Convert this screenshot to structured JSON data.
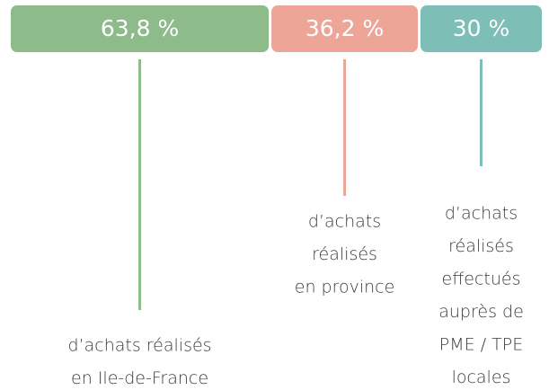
{
  "chart_data": {
    "type": "bar",
    "categories": [
      [
        "d’achats réalisés",
        "en Ile-de-France"
      ],
      [
        "d’achats",
        "réalisés",
        "en province"
      ],
      [
        "d’achats",
        "réalisés",
        "effectués",
        "auprès de",
        "PME / TPE",
        "locales"
      ]
    ],
    "values": [
      63.8,
      36.2,
      30
    ],
    "value_labels": [
      "63,8 %",
      "36,2 %",
      "30 %"
    ],
    "colors": [
      "#8dbb8a",
      "#eda597",
      "#7dbfb7"
    ]
  }
}
